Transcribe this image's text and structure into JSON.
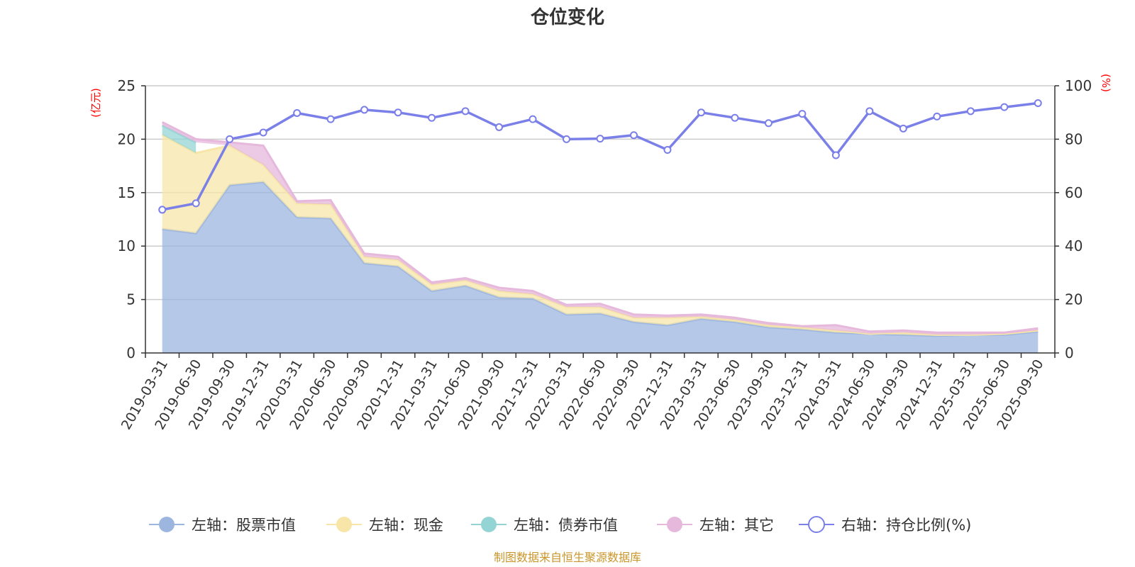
{
  "chart_data": {
    "type": "area",
    "title": "仓位变化",
    "left_axis_unit": "(亿元)",
    "right_axis_unit": "(%)",
    "categories": [
      "2019-03-31",
      "2019-06-30",
      "2019-09-30",
      "2019-12-31",
      "2020-03-31",
      "2020-06-30",
      "2020-09-30",
      "2020-12-31",
      "2021-03-31",
      "2021-06-30",
      "2021-09-30",
      "2021-12-31",
      "2022-03-31",
      "2022-06-30",
      "2022-09-30",
      "2022-12-31",
      "2023-03-31",
      "2023-06-30",
      "2023-09-30",
      "2023-12-31",
      "2024-03-31",
      "2024-06-30",
      "2024-09-30",
      "2024-12-31",
      "2025-03-31",
      "2025-06-30",
      "2025-09-30"
    ],
    "x_tick_labels": [
      "2019-03-31",
      "2019-06-30",
      "2019-09-30",
      "2019-12-31",
      "2020-03-31",
      "2020-06-30",
      "2020-09-30",
      "2020-12-31",
      "2021-03-31",
      "2021-06-30",
      "2021-09-30",
      "2021-12-31",
      "2022-03-31",
      "2022-06-30",
      "2022-09-30",
      "2022-12-31",
      "2023-03-31",
      "2023-06-30",
      "2023-09-30",
      "2023-12-31",
      "2024-03-31",
      "2024-06-30",
      "2024-09-30",
      "2024-12-31",
      "2025-03-31",
      "2025-06-30",
      "2025-09-30"
    ],
    "left_ylim": [
      0,
      25
    ],
    "left_ticks": [
      "0",
      "5",
      "10",
      "15",
      "20",
      "25"
    ],
    "right_ylim": [
      0,
      100
    ],
    "right_ticks": [
      "0",
      "20",
      "40",
      "60",
      "80",
      "100"
    ],
    "series": [
      {
        "name": "左轴：股票市值",
        "axis": "left",
        "kind": "stacked-area",
        "color": "#9db6e0",
        "values": [
          11.6,
          11.2,
          15.7,
          16.0,
          12.7,
          12.6,
          8.4,
          8.1,
          5.8,
          6.3,
          5.2,
          5.1,
          3.6,
          3.7,
          2.9,
          2.6,
          3.2,
          2.9,
          2.4,
          2.2,
          1.9,
          1.8,
          1.7,
          1.6,
          1.7,
          1.7,
          2.0
        ]
      },
      {
        "name": "左轴：现金",
        "axis": "left",
        "kind": "stacked-area",
        "color": "#f7e6a8",
        "values": [
          8.8,
          7.5,
          3.7,
          1.6,
          1.3,
          1.3,
          0.6,
          0.6,
          0.6,
          0.5,
          0.6,
          0.4,
          0.7,
          0.6,
          0.4,
          0.7,
          0.2,
          0.2,
          0.2,
          0.2,
          0.2,
          0.0,
          0.2,
          0.1,
          0.0,
          0.1,
          0.1
        ]
      },
      {
        "name": "左轴：债券市值",
        "axis": "left",
        "kind": "stacked-area",
        "color": "#94d4d4",
        "values": [
          0.9,
          1.0,
          0,
          0,
          0,
          0,
          0,
          0,
          0,
          0,
          0,
          0,
          0,
          0,
          0,
          0,
          0,
          0,
          0,
          0,
          0,
          0,
          0,
          0,
          0,
          0,
          0
        ]
      },
      {
        "name": "左轴：其它",
        "axis": "left",
        "kind": "stacked-area",
        "color": "#e6b8dc",
        "values": [
          0.3,
          0.3,
          0.3,
          1.8,
          0.2,
          0.4,
          0.3,
          0.3,
          0.2,
          0.2,
          0.3,
          0.3,
          0.2,
          0.3,
          0.3,
          0.2,
          0.2,
          0.2,
          0.2,
          0.1,
          0.5,
          0.2,
          0.2,
          0.2,
          0.2,
          0.1,
          0.2
        ]
      },
      {
        "name": "右轴：持仓比例(%)",
        "axis": "right",
        "kind": "line",
        "color": "#7b7fe8",
        "values": [
          53.6,
          56.0,
          80.0,
          82.5,
          89.8,
          87.5,
          91.0,
          90.0,
          88.0,
          90.5,
          84.5,
          87.5,
          80.0,
          80.2,
          81.5,
          76.0,
          90.0,
          88.0,
          86.0,
          89.5,
          74.0,
          90.5,
          84.0,
          88.5,
          90.5,
          92.0,
          93.5
        ]
      }
    ],
    "legend_position": "bottom-center",
    "grid": true
  },
  "footer": {
    "source_text": "制图数据来自恒生聚源数据库"
  }
}
